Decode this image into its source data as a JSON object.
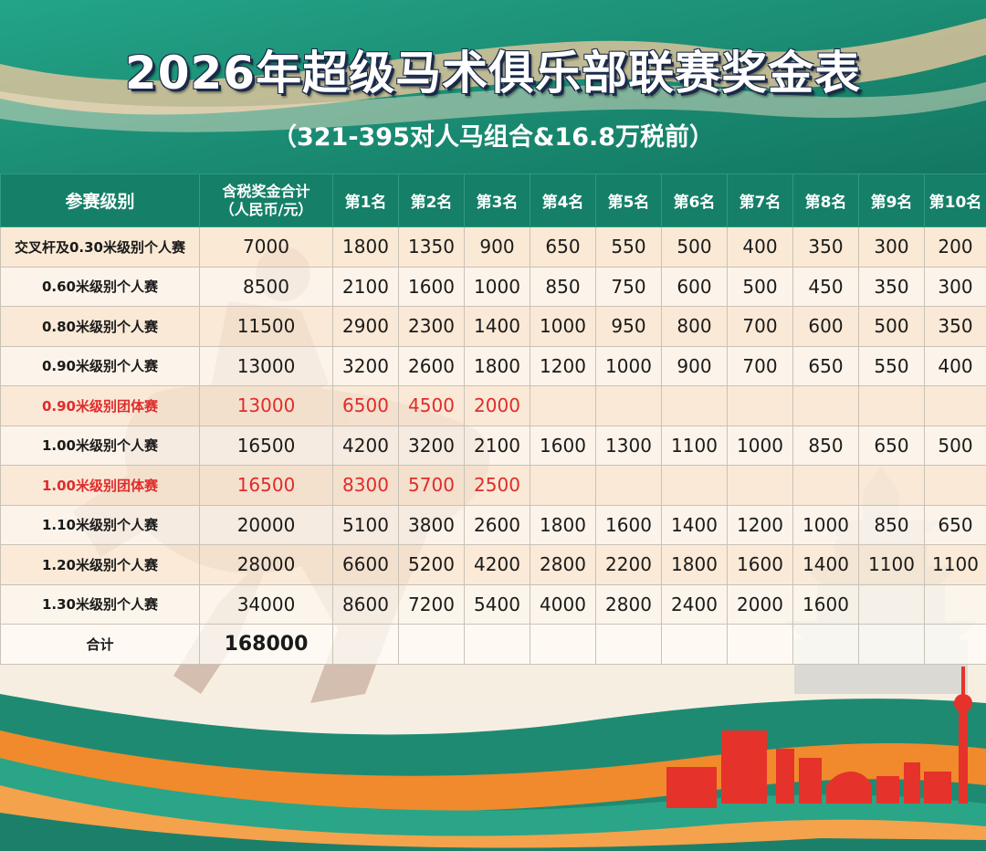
{
  "title": "2026年超级马术俱乐部联赛奖金表",
  "subtitle": "（321-395对人马组合&16.8万税前）",
  "table": {
    "header": {
      "level": "参赛级别",
      "total_line1": "含税奖金合计",
      "total_line2": "（人民币/元）",
      "ranks": [
        "第1名",
        "第2名",
        "第3名",
        "第4名",
        "第5名",
        "第6名",
        "第7名",
        "第8名",
        "第9名",
        "第10名"
      ]
    },
    "rows": [
      {
        "level": "交叉杆及0.30米级别个人赛",
        "total": "7000",
        "prizes": [
          "1800",
          "1350",
          "900",
          "650",
          "550",
          "500",
          "400",
          "350",
          "300",
          "200"
        ]
      },
      {
        "level": "0.60米级别个人赛",
        "total": "8500",
        "prizes": [
          "2100",
          "1600",
          "1000",
          "850",
          "750",
          "600",
          "500",
          "450",
          "350",
          "300"
        ]
      },
      {
        "level": "0.80米级别个人赛",
        "total": "11500",
        "prizes": [
          "2900",
          "2300",
          "1400",
          "1000",
          "950",
          "800",
          "700",
          "600",
          "500",
          "350"
        ]
      },
      {
        "level": "0.90米级别个人赛",
        "total": "13000",
        "prizes": [
          "3200",
          "2600",
          "1800",
          "1200",
          "1000",
          "900",
          "700",
          "650",
          "550",
          "400"
        ]
      },
      {
        "level": "0.90米级别团体赛",
        "total": "13000",
        "prizes": [
          "6500",
          "4500",
          "2000",
          "",
          "",
          "",
          "",
          "",
          "",
          ""
        ],
        "highlight_color": "#e02c2c"
      },
      {
        "level": "1.00米级别个人赛",
        "total": "16500",
        "prizes": [
          "4200",
          "3200",
          "2100",
          "1600",
          "1300",
          "1100",
          "1000",
          "850",
          "650",
          "500"
        ]
      },
      {
        "level": "1.00米级别团体赛",
        "total": "16500",
        "prizes": [
          "8300",
          "5700",
          "2500",
          "",
          "",
          "",
          "",
          "",
          "",
          ""
        ],
        "highlight_color": "#e02c2c"
      },
      {
        "level": "1.10米级别个人赛",
        "total": "20000",
        "prizes": [
          "5100",
          "3800",
          "2600",
          "1800",
          "1600",
          "1400",
          "1200",
          "1000",
          "850",
          "650"
        ]
      },
      {
        "level": "1.20米级别个人赛",
        "total": "28000",
        "prizes": [
          "6600",
          "5200",
          "4200",
          "2800",
          "2200",
          "1800",
          "1600",
          "1400",
          "1100",
          "1100"
        ]
      },
      {
        "level": "1.30米级别个人赛",
        "total": "34000",
        "prizes": [
          "8600",
          "7200",
          "5400",
          "4000",
          "2800",
          "2400",
          "2000",
          "1600",
          "",
          ""
        ]
      }
    ],
    "sum": {
      "label": "合计",
      "total": "168000"
    }
  },
  "colors": {
    "header_green": "#157f68",
    "teal_band": "#1f8a72",
    "accent_orange": "#f08a2c",
    "team_red": "#e02c2c",
    "skyline_red": "#e5322b"
  }
}
